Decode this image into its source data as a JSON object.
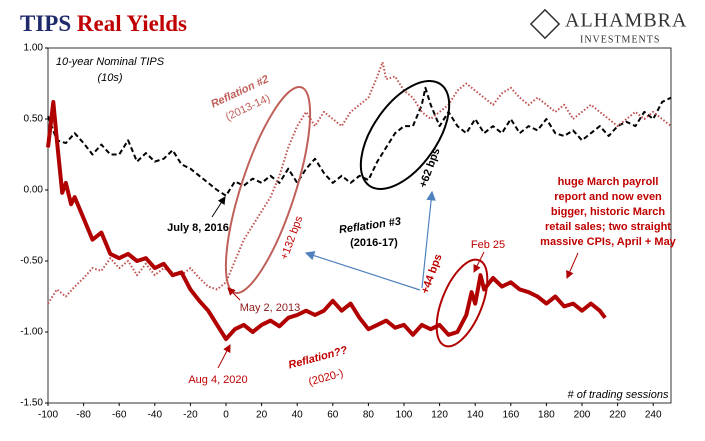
{
  "title": [
    "TIPS",
    "Real Yields"
  ],
  "logo": {
    "name": "ALHAMBRA",
    "sub": "INVESTMENTS"
  },
  "chart_data": {
    "type": "line",
    "xlim": [
      -100,
      250
    ],
    "xticks": [
      -100,
      -80,
      -60,
      -40,
      -20,
      0,
      20,
      40,
      60,
      80,
      100,
      120,
      140,
      160,
      180,
      200,
      220,
      240
    ],
    "ylim": [
      -1.5,
      1.0
    ],
    "yticks": [
      {
        "value": -1.5,
        "label": "-1.50"
      },
      {
        "value": -1.0,
        "label": "-1.00"
      },
      {
        "value": -0.5,
        "label": "-0.50"
      },
      {
        "value": 0,
        "label": "0.00"
      },
      {
        "value": 0.5,
        "label": "0.50"
      },
      {
        "value": 1.0,
        "label": "1.00"
      }
    ],
    "series": [
      {
        "color": "#000000",
        "dash": "dashed",
        "x": [
          -100,
          -95,
          -90,
          -85,
          -80,
          -75,
          -70,
          -65,
          -60,
          -55,
          -50,
          -45,
          -40,
          -35,
          -30,
          -25,
          -20,
          -15,
          -10,
          -5,
          0,
          5,
          10,
          15,
          20,
          25,
          30,
          35,
          40,
          45,
          50,
          55,
          60,
          65,
          70,
          75,
          80,
          85,
          90,
          95,
          100,
          105,
          110,
          112,
          115,
          120,
          125,
          130,
          135,
          140,
          145,
          150,
          155,
          160,
          165,
          170,
          175,
          180,
          185,
          190,
          195,
          200,
          205,
          210,
          215,
          220,
          225,
          230,
          235,
          240,
          245,
          250
        ],
        "values": [
          0.52,
          0.35,
          0.33,
          0.4,
          0.33,
          0.25,
          0.32,
          0.25,
          0.25,
          0.35,
          0.2,
          0.26,
          0.2,
          0.22,
          0.28,
          0.18,
          0.15,
          0.1,
          0.05,
          0.0,
          -0.04,
          0.06,
          0.03,
          0.08,
          0.05,
          0.1,
          0.05,
          0.15,
          0.05,
          0.15,
          0.22,
          0.12,
          0.05,
          0.1,
          0.05,
          0.1,
          0.07,
          0.2,
          0.3,
          0.4,
          0.45,
          0.45,
          0.6,
          0.72,
          0.6,
          0.45,
          0.55,
          0.45,
          0.4,
          0.5,
          0.4,
          0.45,
          0.4,
          0.5,
          0.4,
          0.45,
          0.42,
          0.5,
          0.4,
          0.38,
          0.42,
          0.35,
          0.4,
          0.45,
          0.38,
          0.45,
          0.48,
          0.45,
          0.55,
          0.5,
          0.62,
          0.65
        ]
      },
      {
        "color": "#c0504d",
        "dash": "dotted",
        "x": [
          -100,
          -95,
          -90,
          -85,
          -80,
          -75,
          -70,
          -65,
          -60,
          -55,
          -50,
          -45,
          -40,
          -35,
          -30,
          -25,
          -20,
          -15,
          -10,
          -5,
          0,
          5,
          10,
          15,
          20,
          25,
          30,
          35,
          40,
          45,
          50,
          55,
          60,
          65,
          70,
          75,
          80,
          85,
          88,
          90,
          95,
          100,
          105,
          110,
          115,
          120,
          125,
          130,
          135,
          140,
          145,
          150,
          155,
          160,
          165,
          170,
          175,
          180,
          185,
          190,
          195,
          200,
          205,
          210,
          215,
          220,
          225,
          230,
          235,
          240,
          245,
          250
        ],
        "values": [
          -0.8,
          -0.7,
          -0.75,
          -0.68,
          -0.62,
          -0.55,
          -0.57,
          -0.48,
          -0.55,
          -0.5,
          -0.6,
          -0.52,
          -0.6,
          -0.55,
          -0.58,
          -0.6,
          -0.55,
          -0.62,
          -0.68,
          -0.7,
          -0.65,
          -0.5,
          -0.35,
          -0.25,
          -0.15,
          -0.05,
          0.1,
          0.3,
          0.45,
          0.55,
          0.45,
          0.55,
          0.5,
          0.45,
          0.55,
          0.6,
          0.65,
          0.8,
          0.9,
          0.78,
          0.8,
          0.7,
          0.65,
          0.55,
          0.5,
          0.55,
          0.6,
          0.7,
          0.75,
          0.7,
          0.65,
          0.6,
          0.68,
          0.72,
          0.65,
          0.6,
          0.65,
          0.6,
          0.55,
          0.6,
          0.5,
          0.55,
          0.6,
          0.55,
          0.5,
          0.45,
          0.5,
          0.55,
          0.5,
          0.55,
          0.5,
          0.45
        ]
      },
      {
        "color": "#b00000",
        "dash": "solid",
        "x": [
          -100,
          -97,
          -95,
          -92,
          -90,
          -87,
          -85,
          -80,
          -75,
          -70,
          -65,
          -60,
          -55,
          -50,
          -45,
          -40,
          -35,
          -30,
          -25,
          -20,
          -15,
          -10,
          -5,
          0,
          5,
          10,
          15,
          20,
          25,
          30,
          35,
          40,
          45,
          50,
          55,
          60,
          65,
          70,
          75,
          80,
          85,
          90,
          95,
          100,
          105,
          110,
          115,
          120,
          125,
          130,
          135,
          138,
          140,
          143,
          145,
          150,
          155,
          160,
          165,
          170,
          175,
          180,
          185,
          190,
          195,
          200,
          205,
          210,
          213
        ],
        "values": [
          0.3,
          0.62,
          0.35,
          -0.02,
          0.05,
          -0.1,
          -0.05,
          -0.2,
          -0.35,
          -0.3,
          -0.45,
          -0.48,
          -0.45,
          -0.5,
          -0.48,
          -0.55,
          -0.52,
          -0.6,
          -0.58,
          -0.7,
          -0.78,
          -0.85,
          -0.95,
          -1.05,
          -0.98,
          -0.95,
          -1.0,
          -0.95,
          -0.92,
          -0.96,
          -0.9,
          -0.88,
          -0.85,
          -0.88,
          -0.85,
          -0.78,
          -0.85,
          -0.8,
          -0.9,
          -0.98,
          -0.95,
          -0.92,
          -0.97,
          -0.95,
          -1.02,
          -0.95,
          -0.98,
          -0.95,
          -1.02,
          -1.0,
          -0.88,
          -0.72,
          -0.8,
          -0.6,
          -0.7,
          -0.62,
          -0.68,
          -0.65,
          -0.7,
          -0.72,
          -0.75,
          -0.8,
          -0.75,
          -0.82,
          -0.8,
          -0.85,
          -0.8,
          -0.85,
          -0.9
        ]
      }
    ],
    "annotations": [
      "10-year Nominal TIPS",
      "(10s)",
      "Reflation #2",
      "(2013-14)",
      "Reflation #3",
      "(2016-17)",
      "Reflation??",
      "(2020-)",
      "July 8, 2016",
      "May 2, 2013",
      "Aug 4, 2020",
      "Feb 25",
      "+132 bps",
      "+62 bps",
      "+44 bps",
      "# of trading sessions"
    ],
    "note": [
      "huge March payroll",
      "report and now even",
      "bigger, historic March",
      "retail sales; two straight",
      "massive CPIs, April + May"
    ]
  }
}
